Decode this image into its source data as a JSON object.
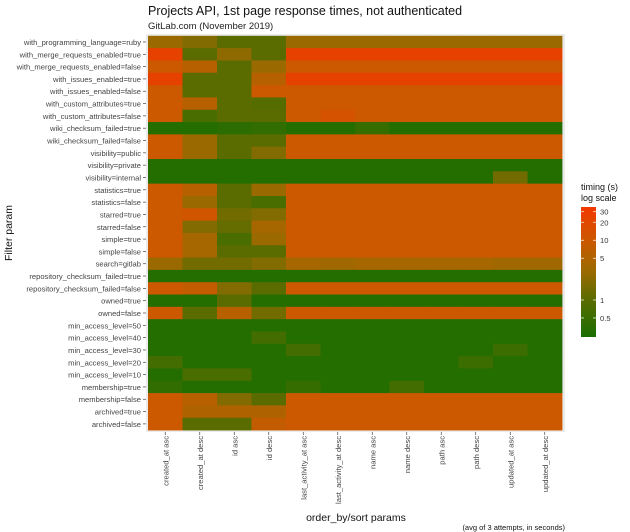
{
  "chart_data": {
    "type": "heatmap",
    "title": "Projects API, 1st page response times, not authenticated",
    "subtitle": "GitLab.com (November 2019)",
    "xlabel": "order_by/sort params",
    "ylabel": "Filter param",
    "caption": "(avg of 3 attempts, in seconds)",
    "legend": {
      "title_line1": "timing (s)",
      "title_line2": "log scale",
      "ticks": [
        30,
        20,
        10,
        5,
        1,
        0.5
      ],
      "range": [
        0.24,
        36
      ],
      "placement": "right"
    },
    "colors": {
      "low": "#1a6e00",
      "mid_low": "#5a6c00",
      "mid": "#9a6a00",
      "mid_high": "#cc5800",
      "high": "#f23800"
    },
    "columns": [
      "created_at asc",
      "created_at desc",
      "id asc",
      "id desc",
      "last_activity_at asc",
      "last_activity_at desc",
      "name asc",
      "name desc",
      "path asc",
      "path desc",
      "updated_at asc",
      "updated_at desc"
    ],
    "rows": [
      "with_programming_language=ruby",
      "with_merge_requests_enabled=true",
      "with_merge_requests_enabled=false",
      "with_issues_enabled=true",
      "with_issues_enabled=false",
      "with_custom_attributes=true",
      "with_custom_attributes=false",
      "wiki_checksum_failed=true",
      "wiki_checksum_failed=false",
      "visibility=public",
      "visibility=private",
      "visibility=internal",
      "statistics=true",
      "statistics=false",
      "starred=true",
      "starred=false",
      "simple=true",
      "simple=false",
      "search=gitlab",
      "repository_checksum_failed=true",
      "repository_checksum_failed=false",
      "owned=true",
      "owned=false",
      "min_access_level=50",
      "min_access_level=40",
      "min_access_level=30",
      "min_access_level=20",
      "min_access_level=10",
      "membership=true",
      "membership=false",
      "archived=true",
      "archived=false"
    ],
    "values": [
      [
        3,
        2,
        1,
        1,
        3,
        3,
        3,
        3,
        3,
        3,
        3,
        3
      ],
      [
        25,
        1,
        2.5,
        1,
        25,
        25,
        25,
        25,
        25,
        25,
        25,
        25
      ],
      [
        10,
        6,
        1,
        3,
        10,
        10,
        10,
        10,
        10,
        10,
        10,
        10
      ],
      [
        25,
        1,
        1,
        6,
        25,
        25,
        25,
        25,
        25,
        25,
        25,
        25
      ],
      [
        10,
        1,
        1,
        10,
        10,
        10,
        10,
        10,
        10,
        10,
        10,
        10
      ],
      [
        10,
        6,
        1,
        0.9,
        10,
        10,
        10,
        10,
        10,
        10,
        10,
        10
      ],
      [
        10,
        0.7,
        1,
        1,
        10,
        13,
        10,
        10,
        10,
        10,
        10,
        10
      ],
      [
        0.3,
        0.3,
        0.35,
        0.4,
        0.3,
        0.3,
        0.45,
        0.3,
        0.3,
        0.3,
        0.3,
        0.3
      ],
      [
        10,
        3,
        1,
        1,
        10,
        10,
        10,
        10,
        10,
        10,
        10,
        10
      ],
      [
        10,
        3,
        1,
        2,
        10,
        10,
        10,
        10,
        10,
        10,
        10,
        10
      ],
      [
        0.3,
        0.3,
        0.3,
        0.3,
        0.3,
        0.3,
        0.3,
        0.3,
        0.3,
        0.3,
        0.3,
        0.3
      ],
      [
        0.3,
        0.3,
        0.3,
        0.3,
        0.3,
        0.3,
        0.3,
        0.3,
        0.3,
        0.3,
        1.5,
        0.3
      ],
      [
        10,
        6,
        1,
        3,
        10,
        10,
        10,
        10,
        10,
        10,
        10,
        10
      ],
      [
        10,
        3,
        1,
        0.7,
        10,
        10,
        10,
        10,
        10,
        10,
        10,
        10
      ],
      [
        10,
        12,
        1.5,
        2,
        10,
        10,
        10,
        10,
        10,
        10,
        10,
        10
      ],
      [
        10,
        2,
        1.2,
        4,
        10,
        10,
        10,
        10,
        10,
        10,
        10,
        10
      ],
      [
        10,
        4,
        0.7,
        3,
        10,
        10,
        10,
        10,
        10,
        10,
        10,
        10
      ],
      [
        10,
        4,
        1,
        1,
        10,
        10,
        10,
        10,
        10,
        10,
        10,
        10
      ],
      [
        3,
        1.5,
        1.5,
        2,
        4,
        3.5,
        4,
        4,
        4,
        4,
        3.5,
        3.5
      ],
      [
        0.3,
        0.3,
        0.3,
        0.3,
        0.3,
        0.3,
        0.3,
        0.3,
        0.3,
        0.3,
        0.3,
        0.3
      ],
      [
        10,
        8,
        2,
        1,
        10,
        10,
        10,
        10,
        10,
        10,
        10,
        10
      ],
      [
        0.3,
        0.3,
        1,
        0.3,
        0.3,
        0.3,
        0.3,
        0.3,
        0.3,
        0.3,
        0.3,
        0.3
      ],
      [
        10,
        1,
        6,
        1.5,
        10,
        10,
        10,
        10,
        10,
        10,
        10,
        10
      ],
      [
        0.3,
        0.3,
        0.3,
        0.3,
        0.3,
        0.3,
        0.3,
        0.3,
        0.3,
        0.3,
        0.3,
        0.3
      ],
      [
        0.3,
        0.3,
        0.3,
        0.6,
        0.3,
        0.3,
        0.3,
        0.3,
        0.3,
        0.3,
        0.3,
        0.3
      ],
      [
        0.3,
        0.3,
        0.3,
        0.3,
        0.6,
        0.3,
        0.3,
        0.3,
        0.3,
        0.3,
        0.5,
        0.3
      ],
      [
        0.6,
        0.3,
        0.3,
        0.3,
        0.3,
        0.3,
        0.3,
        0.3,
        0.3,
        0.5,
        0.3,
        0.3
      ],
      [
        0.3,
        0.7,
        0.7,
        0.3,
        0.3,
        0.3,
        0.3,
        0.3,
        0.3,
        0.3,
        0.3,
        0.3
      ],
      [
        0.4,
        0.3,
        0.3,
        0.3,
        0.45,
        0.3,
        0.3,
        0.6,
        0.3,
        0.3,
        0.3,
        0.3
      ],
      [
        10,
        6,
        2,
        1,
        10,
        10,
        10,
        10,
        10,
        10,
        10,
        10
      ],
      [
        10,
        5,
        5,
        5,
        10,
        10,
        10,
        10,
        10,
        10,
        10,
        10
      ],
      [
        10,
        1,
        1,
        8,
        10,
        10,
        10,
        10,
        10,
        10,
        10,
        10
      ]
    ]
  }
}
